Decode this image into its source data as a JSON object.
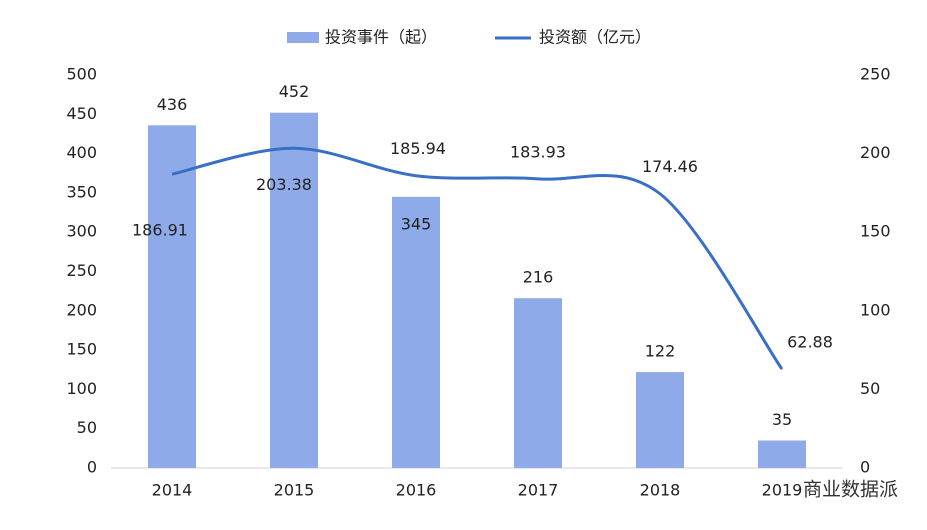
{
  "chart_data": {
    "type": "bar-line",
    "categories": [
      "2014",
      "2015",
      "2016",
      "2017",
      "2018",
      "2019"
    ],
    "series": [
      {
        "name": "投资事件（起）",
        "type": "bar",
        "color": "#8eaae8",
        "values": [
          436,
          452,
          345,
          216,
          122,
          35
        ]
      },
      {
        "name": "投资额（亿元）",
        "type": "line",
        "axis": "y2",
        "color": "#3a6fc6",
        "values": [
          186.91,
          203.38,
          185.94,
          183.93,
          174.46,
          62.88
        ]
      }
    ],
    "ylim": [
      0,
      500
    ],
    "yticks": [
      0,
      50,
      100,
      150,
      200,
      250,
      300,
      350,
      400,
      450,
      500
    ],
    "y2lim": [
      0,
      250
    ],
    "y2ticks": [
      0,
      50,
      100,
      150,
      200,
      250
    ],
    "legend": "top",
    "watermark": "商业数据派"
  }
}
